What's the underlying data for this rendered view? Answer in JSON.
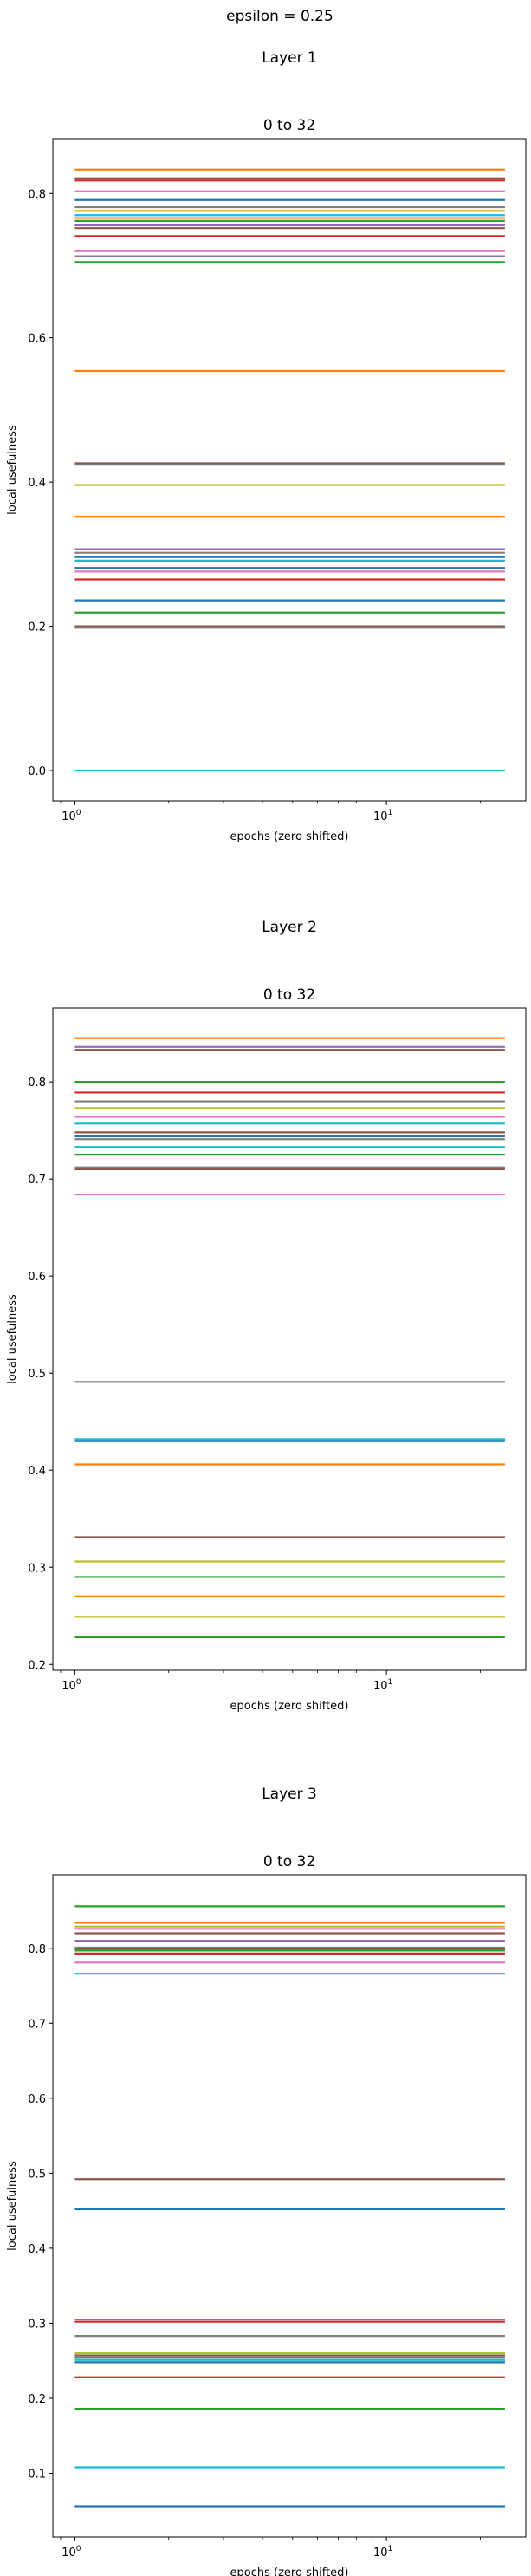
{
  "figure": {
    "suptitle": "epsilon = 0.25"
  },
  "chart_data": [
    {
      "type": "line",
      "layer_title": "Layer 1",
      "title": "0 to 32",
      "xlabel": "epochs (zero shifted)",
      "ylabel": "local usefulness",
      "x_scale": "log",
      "x_range": [
        1,
        24
      ],
      "xlim": [
        0.85,
        28
      ],
      "ylim": [
        -0.042,
        0.876
      ],
      "x_tick_labels": [
        {
          "x": 1,
          "base": "10",
          "exp": "0"
        },
        {
          "x": 10,
          "base": "10",
          "exp": "1"
        }
      ],
      "y_ticks": [
        0.0,
        0.2,
        0.4,
        0.6,
        0.8
      ],
      "y_tick_labels": [
        "0.0",
        "0.2",
        "0.4",
        "0.6",
        "0.8"
      ],
      "grid": false,
      "series": [
        {
          "y": 0.833,
          "color": "#ff7f0e"
        },
        {
          "y": 0.821,
          "color": "#8c564b"
        },
        {
          "y": 0.818,
          "color": "#d62728"
        },
        {
          "y": 0.803,
          "color": "#e377c2"
        },
        {
          "y": 0.791,
          "color": "#1f77b4"
        },
        {
          "y": 0.781,
          "color": "#7f7f7f"
        },
        {
          "y": 0.776,
          "color": "#bcbd22"
        },
        {
          "y": 0.77,
          "color": "#17becf"
        },
        {
          "y": 0.766,
          "color": "#ff7f0e"
        },
        {
          "y": 0.762,
          "color": "#2ca02c"
        },
        {
          "y": 0.756,
          "color": "#9467bd"
        },
        {
          "y": 0.752,
          "color": "#8c564b"
        },
        {
          "y": 0.741,
          "color": "#d62728"
        },
        {
          "y": 0.72,
          "color": "#e377c2"
        },
        {
          "y": 0.713,
          "color": "#7f7f7f"
        },
        {
          "y": 0.705,
          "color": "#2ca02c"
        },
        {
          "y": 0.554,
          "color": "#ff7f0e"
        },
        {
          "y": 0.426,
          "color": "#8c564b"
        },
        {
          "y": 0.424,
          "color": "#7f7f7f"
        },
        {
          "y": 0.396,
          "color": "#bcbd22"
        },
        {
          "y": 0.352,
          "color": "#ff7f0e"
        },
        {
          "y": 0.307,
          "color": "#9467bd"
        },
        {
          "y": 0.302,
          "color": "#7f7f7f"
        },
        {
          "y": 0.296,
          "color": "#1f77b4"
        },
        {
          "y": 0.291,
          "color": "#17becf"
        },
        {
          "y": 0.281,
          "color": "#1f77b4"
        },
        {
          "y": 0.276,
          "color": "#e377c2"
        },
        {
          "y": 0.265,
          "color": "#d62728"
        },
        {
          "y": 0.236,
          "color": "#1f77b4"
        },
        {
          "y": 0.219,
          "color": "#2ca02c"
        },
        {
          "y": 0.2,
          "color": "#8c564b"
        },
        {
          "y": 0.198,
          "color": "#7f7f7f"
        },
        {
          "y": 0.0,
          "color": "#17becf"
        }
      ]
    },
    {
      "type": "line",
      "layer_title": "Layer 2",
      "title": "0 to 32",
      "xlabel": "epochs (zero shifted)",
      "ylabel": "local usefulness",
      "x_scale": "log",
      "x_range": [
        1,
        24
      ],
      "xlim": [
        0.85,
        28
      ],
      "ylim": [
        0.194,
        0.876
      ],
      "x_tick_labels": [
        {
          "x": 1,
          "base": "10",
          "exp": "0"
        },
        {
          "x": 10,
          "base": "10",
          "exp": "1"
        }
      ],
      "y_ticks": [
        0.2,
        0.3,
        0.4,
        0.5,
        0.6,
        0.7,
        0.8
      ],
      "y_tick_labels": [
        "0.2",
        "0.3",
        "0.4",
        "0.5",
        "0.6",
        "0.7",
        "0.8"
      ],
      "grid": false,
      "series": [
        {
          "y": 0.845,
          "color": "#ff7f0e"
        },
        {
          "y": 0.836,
          "color": "#9467bd"
        },
        {
          "y": 0.833,
          "color": "#8c564b"
        },
        {
          "y": 0.8,
          "color": "#2ca02c"
        },
        {
          "y": 0.789,
          "color": "#d62728"
        },
        {
          "y": 0.78,
          "color": "#7f7f7f"
        },
        {
          "y": 0.773,
          "color": "#bcbd22"
        },
        {
          "y": 0.764,
          "color": "#e377c2"
        },
        {
          "y": 0.757,
          "color": "#17becf"
        },
        {
          "y": 0.748,
          "color": "#8c564b"
        },
        {
          "y": 0.744,
          "color": "#1f77b4"
        },
        {
          "y": 0.741,
          "color": "#7f7f7f"
        },
        {
          "y": 0.733,
          "color": "#17becf"
        },
        {
          "y": 0.725,
          "color": "#2ca02c"
        },
        {
          "y": 0.712,
          "color": "#7f7f7f"
        },
        {
          "y": 0.71,
          "color": "#8c564b"
        },
        {
          "y": 0.684,
          "color": "#e377c2"
        },
        {
          "y": 0.491,
          "color": "#7f7f7f"
        },
        {
          "y": 0.432,
          "color": "#17becf"
        },
        {
          "y": 0.43,
          "color": "#1f77b4"
        },
        {
          "y": 0.406,
          "color": "#ff7f0e"
        },
        {
          "y": 0.331,
          "color": "#8c564b"
        },
        {
          "y": 0.306,
          "color": "#bcbd22"
        },
        {
          "y": 0.29,
          "color": "#2ca02c"
        },
        {
          "y": 0.27,
          "color": "#ff7f0e"
        },
        {
          "y": 0.249,
          "color": "#bcbd22"
        },
        {
          "y": 0.228,
          "color": "#2ca02c"
        }
      ]
    },
    {
      "type": "line",
      "layer_title": "Layer 3",
      "title": "0 to 32",
      "xlabel": "epochs (zero shifted)",
      "ylabel": "local usefulness",
      "x_scale": "log",
      "x_range": [
        1,
        24
      ],
      "xlim": [
        0.85,
        28
      ],
      "ylim": [
        0.015,
        0.898
      ],
      "x_tick_labels": [
        {
          "x": 1,
          "base": "10",
          "exp": "0"
        },
        {
          "x": 10,
          "base": "10",
          "exp": "1"
        }
      ],
      "y_ticks": [
        0.1,
        0.2,
        0.3,
        0.4,
        0.5,
        0.6,
        0.7,
        0.8
      ],
      "y_tick_labels": [
        "0.1",
        "0.2",
        "0.3",
        "0.4",
        "0.5",
        "0.6",
        "0.7",
        "0.8"
      ],
      "grid": false,
      "series": [
        {
          "y": 0.856,
          "color": "#2ca02c"
        },
        {
          "y": 0.834,
          "color": "#ff7f0e"
        },
        {
          "y": 0.829,
          "color": "#bcbd22"
        },
        {
          "y": 0.826,
          "color": "#e377c2"
        },
        {
          "y": 0.82,
          "color": "#8c564b"
        },
        {
          "y": 0.81,
          "color": "#9467bd"
        },
        {
          "y": 0.801,
          "color": "#7f7f7f"
        },
        {
          "y": 0.799,
          "color": "#8c564b"
        },
        {
          "y": 0.797,
          "color": "#2ca02c"
        },
        {
          "y": 0.793,
          "color": "#d62728"
        },
        {
          "y": 0.781,
          "color": "#e377c2"
        },
        {
          "y": 0.766,
          "color": "#17becf"
        },
        {
          "y": 0.492,
          "color": "#8c564b"
        },
        {
          "y": 0.452,
          "color": "#1f77b4"
        },
        {
          "y": 0.305,
          "color": "#9467bd"
        },
        {
          "y": 0.302,
          "color": "#d62728"
        },
        {
          "y": 0.283,
          "color": "#7f7f7f"
        },
        {
          "y": 0.26,
          "color": "#bcbd22"
        },
        {
          "y": 0.257,
          "color": "#8c564b"
        },
        {
          "y": 0.254,
          "color": "#1f77b4"
        },
        {
          "y": 0.251,
          "color": "#17becf"
        },
        {
          "y": 0.248,
          "color": "#1f77b4"
        },
        {
          "y": 0.228,
          "color": "#d62728"
        },
        {
          "y": 0.186,
          "color": "#2ca02c"
        },
        {
          "y": 0.108,
          "color": "#17becf"
        },
        {
          "y": 0.056,
          "color": "#1f77b4"
        }
      ]
    }
  ]
}
